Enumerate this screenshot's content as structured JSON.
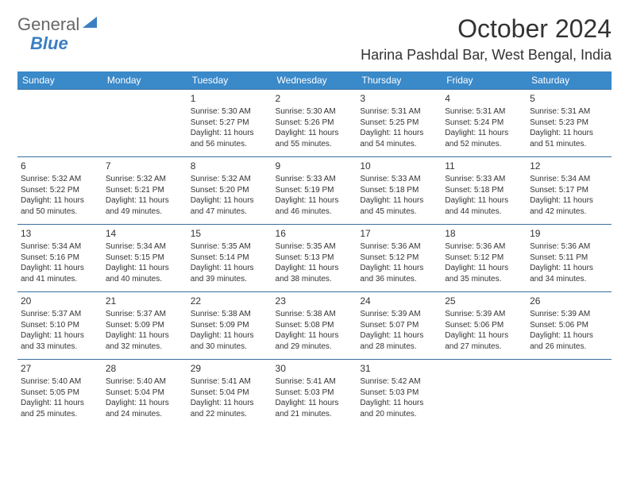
{
  "brand": {
    "part1": "General",
    "part2": "Blue"
  },
  "title": "October 2024",
  "location": "Harina Pashdal Bar, West Bengal, India",
  "colors": {
    "header_bg": "#3a89c9",
    "header_text": "#ffffff",
    "row_border": "#3a6fa0",
    "text": "#333333",
    "brand_blue": "#3a7fc4"
  },
  "daysOfWeek": [
    "Sunday",
    "Monday",
    "Tuesday",
    "Wednesday",
    "Thursday",
    "Friday",
    "Saturday"
  ],
  "weeks": [
    [
      null,
      null,
      {
        "n": "1",
        "sr": "Sunrise: 5:30 AM",
        "ss": "Sunset: 5:27 PM",
        "d1": "Daylight: 11 hours",
        "d2": "and 56 minutes."
      },
      {
        "n": "2",
        "sr": "Sunrise: 5:30 AM",
        "ss": "Sunset: 5:26 PM",
        "d1": "Daylight: 11 hours",
        "d2": "and 55 minutes."
      },
      {
        "n": "3",
        "sr": "Sunrise: 5:31 AM",
        "ss": "Sunset: 5:25 PM",
        "d1": "Daylight: 11 hours",
        "d2": "and 54 minutes."
      },
      {
        "n": "4",
        "sr": "Sunrise: 5:31 AM",
        "ss": "Sunset: 5:24 PM",
        "d1": "Daylight: 11 hours",
        "d2": "and 52 minutes."
      },
      {
        "n": "5",
        "sr": "Sunrise: 5:31 AM",
        "ss": "Sunset: 5:23 PM",
        "d1": "Daylight: 11 hours",
        "d2": "and 51 minutes."
      }
    ],
    [
      {
        "n": "6",
        "sr": "Sunrise: 5:32 AM",
        "ss": "Sunset: 5:22 PM",
        "d1": "Daylight: 11 hours",
        "d2": "and 50 minutes."
      },
      {
        "n": "7",
        "sr": "Sunrise: 5:32 AM",
        "ss": "Sunset: 5:21 PM",
        "d1": "Daylight: 11 hours",
        "d2": "and 49 minutes."
      },
      {
        "n": "8",
        "sr": "Sunrise: 5:32 AM",
        "ss": "Sunset: 5:20 PM",
        "d1": "Daylight: 11 hours",
        "d2": "and 47 minutes."
      },
      {
        "n": "9",
        "sr": "Sunrise: 5:33 AM",
        "ss": "Sunset: 5:19 PM",
        "d1": "Daylight: 11 hours",
        "d2": "and 46 minutes."
      },
      {
        "n": "10",
        "sr": "Sunrise: 5:33 AM",
        "ss": "Sunset: 5:18 PM",
        "d1": "Daylight: 11 hours",
        "d2": "and 45 minutes."
      },
      {
        "n": "11",
        "sr": "Sunrise: 5:33 AM",
        "ss": "Sunset: 5:18 PM",
        "d1": "Daylight: 11 hours",
        "d2": "and 44 minutes."
      },
      {
        "n": "12",
        "sr": "Sunrise: 5:34 AM",
        "ss": "Sunset: 5:17 PM",
        "d1": "Daylight: 11 hours",
        "d2": "and 42 minutes."
      }
    ],
    [
      {
        "n": "13",
        "sr": "Sunrise: 5:34 AM",
        "ss": "Sunset: 5:16 PM",
        "d1": "Daylight: 11 hours",
        "d2": "and 41 minutes."
      },
      {
        "n": "14",
        "sr": "Sunrise: 5:34 AM",
        "ss": "Sunset: 5:15 PM",
        "d1": "Daylight: 11 hours",
        "d2": "and 40 minutes."
      },
      {
        "n": "15",
        "sr": "Sunrise: 5:35 AM",
        "ss": "Sunset: 5:14 PM",
        "d1": "Daylight: 11 hours",
        "d2": "and 39 minutes."
      },
      {
        "n": "16",
        "sr": "Sunrise: 5:35 AM",
        "ss": "Sunset: 5:13 PM",
        "d1": "Daylight: 11 hours",
        "d2": "and 38 minutes."
      },
      {
        "n": "17",
        "sr": "Sunrise: 5:36 AM",
        "ss": "Sunset: 5:12 PM",
        "d1": "Daylight: 11 hours",
        "d2": "and 36 minutes."
      },
      {
        "n": "18",
        "sr": "Sunrise: 5:36 AM",
        "ss": "Sunset: 5:12 PM",
        "d1": "Daylight: 11 hours",
        "d2": "and 35 minutes."
      },
      {
        "n": "19",
        "sr": "Sunrise: 5:36 AM",
        "ss": "Sunset: 5:11 PM",
        "d1": "Daylight: 11 hours",
        "d2": "and 34 minutes."
      }
    ],
    [
      {
        "n": "20",
        "sr": "Sunrise: 5:37 AM",
        "ss": "Sunset: 5:10 PM",
        "d1": "Daylight: 11 hours",
        "d2": "and 33 minutes."
      },
      {
        "n": "21",
        "sr": "Sunrise: 5:37 AM",
        "ss": "Sunset: 5:09 PM",
        "d1": "Daylight: 11 hours",
        "d2": "and 32 minutes."
      },
      {
        "n": "22",
        "sr": "Sunrise: 5:38 AM",
        "ss": "Sunset: 5:09 PM",
        "d1": "Daylight: 11 hours",
        "d2": "and 30 minutes."
      },
      {
        "n": "23",
        "sr": "Sunrise: 5:38 AM",
        "ss": "Sunset: 5:08 PM",
        "d1": "Daylight: 11 hours",
        "d2": "and 29 minutes."
      },
      {
        "n": "24",
        "sr": "Sunrise: 5:39 AM",
        "ss": "Sunset: 5:07 PM",
        "d1": "Daylight: 11 hours",
        "d2": "and 28 minutes."
      },
      {
        "n": "25",
        "sr": "Sunrise: 5:39 AM",
        "ss": "Sunset: 5:06 PM",
        "d1": "Daylight: 11 hours",
        "d2": "and 27 minutes."
      },
      {
        "n": "26",
        "sr": "Sunrise: 5:39 AM",
        "ss": "Sunset: 5:06 PM",
        "d1": "Daylight: 11 hours",
        "d2": "and 26 minutes."
      }
    ],
    [
      {
        "n": "27",
        "sr": "Sunrise: 5:40 AM",
        "ss": "Sunset: 5:05 PM",
        "d1": "Daylight: 11 hours",
        "d2": "and 25 minutes."
      },
      {
        "n": "28",
        "sr": "Sunrise: 5:40 AM",
        "ss": "Sunset: 5:04 PM",
        "d1": "Daylight: 11 hours",
        "d2": "and 24 minutes."
      },
      {
        "n": "29",
        "sr": "Sunrise: 5:41 AM",
        "ss": "Sunset: 5:04 PM",
        "d1": "Daylight: 11 hours",
        "d2": "and 22 minutes."
      },
      {
        "n": "30",
        "sr": "Sunrise: 5:41 AM",
        "ss": "Sunset: 5:03 PM",
        "d1": "Daylight: 11 hours",
        "d2": "and 21 minutes."
      },
      {
        "n": "31",
        "sr": "Sunrise: 5:42 AM",
        "ss": "Sunset: 5:03 PM",
        "d1": "Daylight: 11 hours",
        "d2": "and 20 minutes."
      },
      null,
      null
    ]
  ]
}
